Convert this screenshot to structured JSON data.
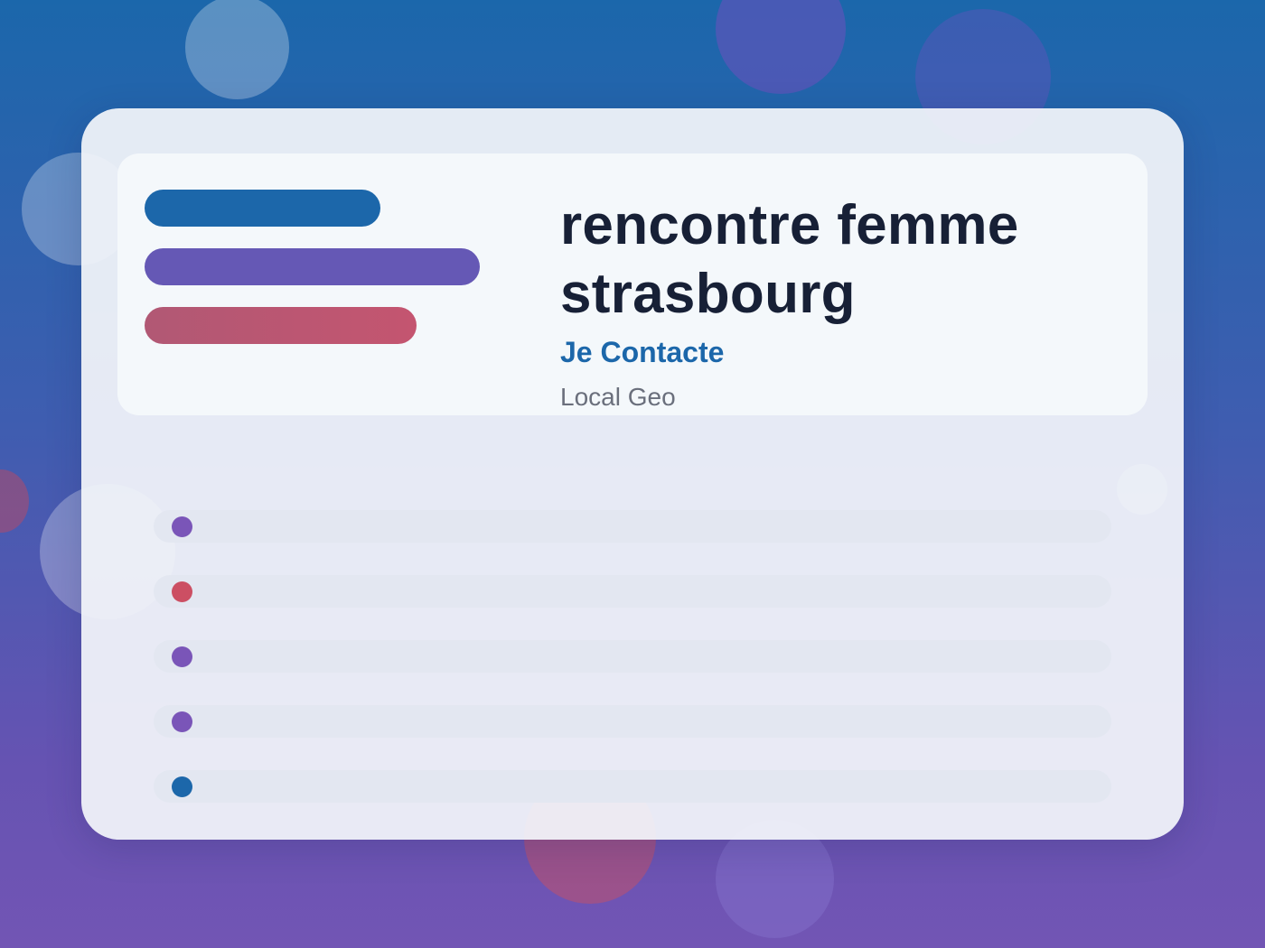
{
  "header": {
    "title": "rencontre femme strasbourg",
    "cta_label": "Je Contacte",
    "subtitle": "Local Geo"
  },
  "colors": {
    "accent_blue": "#1c67aa",
    "accent_purple": "#6558b5",
    "accent_red": "#c45570",
    "title_text": "#172036",
    "muted_text": "#6a6f7c",
    "dot_purple": "#7a55b8",
    "dot_red": "#cc4f63",
    "dot_blue": "#1c67aa"
  },
  "list": {
    "items": [
      {
        "dot_color": "#7a55b8"
      },
      {
        "dot_color": "#cc4f63"
      },
      {
        "dot_color": "#7a55b8"
      },
      {
        "dot_color": "#7a55b8"
      },
      {
        "dot_color": "#1c67aa"
      }
    ]
  }
}
